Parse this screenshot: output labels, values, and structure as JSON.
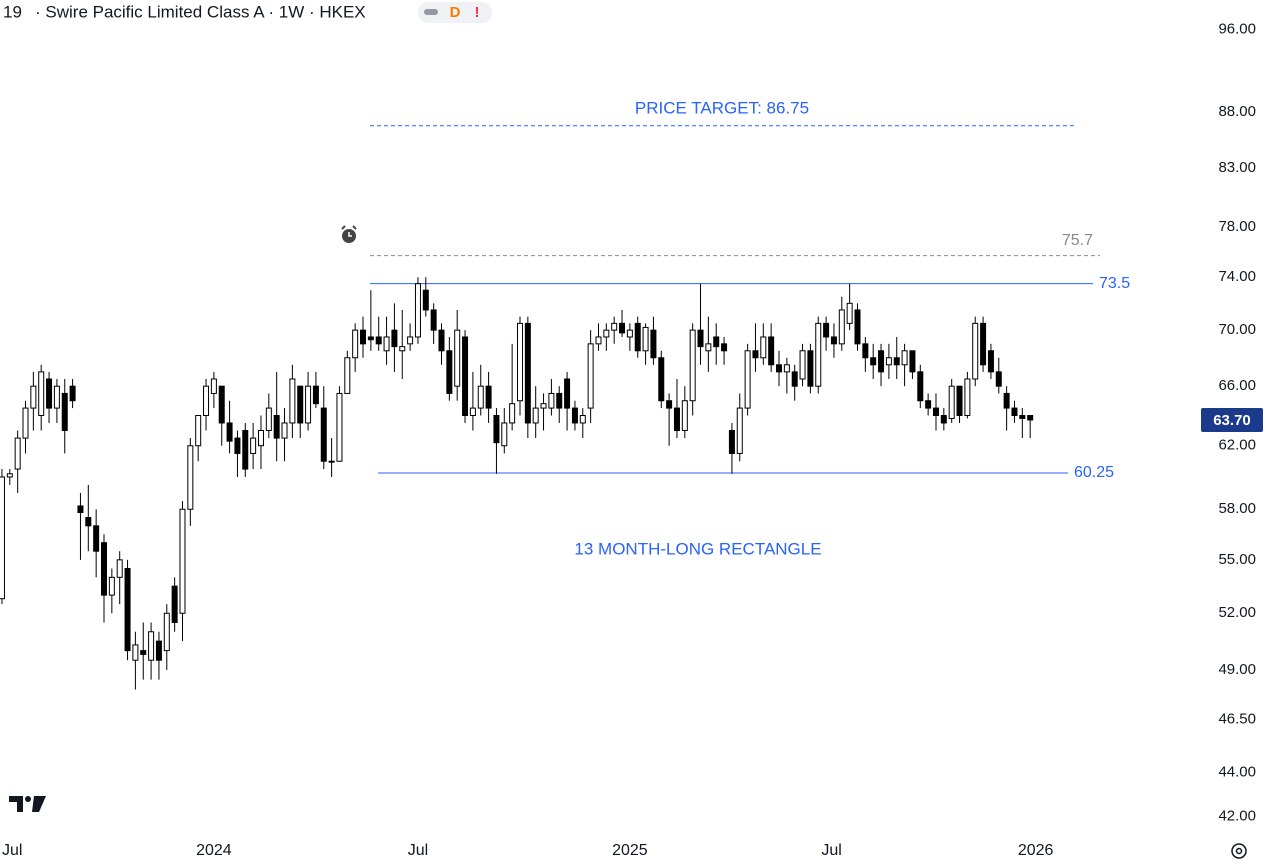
{
  "header": {
    "symbol": "19",
    "title": "· Swire Pacific Limited Class A · 1W · HKEX",
    "badges": [
      "D",
      "!"
    ]
  },
  "chart_data": {
    "type": "candlestick",
    "log_scale": true,
    "up_color": "#ffffff",
    "down_color": "#000000",
    "x": [
      0,
      1,
      2,
      3,
      4,
      5,
      6,
      7,
      8,
      9,
      10,
      11,
      12,
      13,
      14,
      15,
      16,
      17,
      18,
      19,
      20,
      21,
      22,
      23,
      24,
      25,
      26,
      27,
      28,
      29,
      30,
      31,
      32,
      33,
      34,
      35,
      36,
      37,
      38,
      39,
      40,
      41,
      42,
      43,
      44,
      45,
      46,
      47,
      48,
      49,
      50,
      51,
      52,
      53,
      54,
      55,
      56,
      57,
      58,
      59,
      60,
      61,
      62,
      63,
      64,
      65,
      66,
      67,
      68,
      69,
      70,
      71,
      72,
      73,
      74,
      75,
      76,
      77,
      78,
      79,
      80,
      81,
      82,
      83,
      84,
      85,
      86,
      87,
      88,
      89,
      90,
      91,
      92,
      93,
      94,
      95,
      96,
      97,
      98,
      99,
      100,
      101,
      102,
      103,
      104,
      105,
      106,
      107,
      108,
      109,
      110,
      111,
      112,
      113,
      114,
      115,
      116,
      117,
      118,
      119,
      120,
      121,
      122,
      123,
      124,
      125,
      126,
      127,
      128,
      129,
      130,
      131
    ],
    "open": [
      52.8,
      60,
      60.5,
      62.5,
      64.5,
      64,
      66.5,
      64.5,
      65.5,
      66,
      58.2,
      57.5,
      57,
      56,
      53,
      54,
      54.5,
      49.5,
      50,
      49.5,
      50.5,
      50,
      53.5,
      52,
      58,
      62,
      64,
      65.5,
      66,
      63.5,
      62.5,
      63,
      61.5,
      62,
      63,
      64,
      62.5,
      63.5,
      66,
      63.5,
      66,
      64.5,
      61,
      61,
      65.5,
      68,
      70,
      69.5,
      69.5,
      68.5,
      70,
      68.5,
      69,
      69.5,
      73,
      71.5,
      70,
      68.5,
      66,
      69.5,
      64,
      64.5,
      66,
      64,
      62,
      63.5,
      65,
      70.5,
      63.5,
      64.5,
      64.5,
      65.5,
      66.5,
      64.5,
      63.5,
      64.5,
      69,
      69.5,
      70,
      70.5,
      69.5,
      70.5,
      68.5,
      70,
      68,
      65,
      64.5,
      63,
      65,
      70,
      68.5,
      69.5,
      69,
      63,
      61.5,
      64.5,
      68.5,
      68,
      69.5,
      67.5,
      67,
      67,
      66.5,
      68.5,
      66,
      70.5,
      69.5,
      69,
      70.5,
      71.5,
      69,
      68,
      68.5,
      67.5,
      68,
      67.5,
      68.5,
      67,
      65,
      64.5,
      64,
      63.8,
      66,
      64,
      66.5,
      70.5,
      68.5,
      67,
      65.5,
      64.5,
      64,
      64
    ],
    "high": [
      60.5,
      60.5,
      63,
      65,
      67,
      67.5,
      67,
      66.5,
      66.5,
      66.5,
      59,
      59.5,
      58,
      56.5,
      54.5,
      55.5,
      55,
      51,
      51.5,
      51.5,
      51,
      52.5,
      54,
      58.5,
      62.5,
      64,
      66.5,
      67,
      66,
      65,
      63,
      63.5,
      63.5,
      64,
      65.5,
      67,
      64.5,
      67.5,
      66,
      67,
      67,
      66,
      62.5,
      66,
      68.5,
      70.5,
      71,
      73,
      71,
      71,
      72,
      71.5,
      70.5,
      74,
      74,
      72,
      70.5,
      69.5,
      71.5,
      70,
      67,
      67.5,
      67,
      64.5,
      64.5,
      69,
      71,
      71,
      66,
      65.5,
      66.5,
      66,
      67,
      65,
      64.5,
      70,
      70.5,
      70.5,
      71,
      71.5,
      70.5,
      71,
      70.5,
      71,
      68.5,
      65.5,
      66.5,
      66,
      70.5,
      73.5,
      71,
      70.5,
      69.5,
      63.5,
      65.5,
      69,
      70.5,
      70.5,
      70.5,
      68.5,
      68,
      67.5,
      69,
      69,
      71,
      71,
      70.5,
      72.5,
      73.5,
      72,
      69.5,
      69,
      69,
      69,
      69.5,
      69,
      68.5,
      67.5,
      65.5,
      65.5,
      64.5,
      66.5,
      66,
      67,
      71,
      71,
      69,
      68,
      66,
      65,
      64.5,
      64
    ],
    "low": [
      52.5,
      59.5,
      59,
      61.5,
      63,
      63,
      63.5,
      63.5,
      61.5,
      64.5,
      55,
      55.5,
      54,
      51.5,
      52,
      52.5,
      49.5,
      48,
      48.5,
      48.5,
      48.5,
      49,
      51,
      50.5,
      57,
      61,
      63,
      64.5,
      62,
      61.5,
      60,
      60,
      60.5,
      60.5,
      62.5,
      61,
      61,
      62.5,
      62.5,
      63,
      64.5,
      60.5,
      60,
      61,
      65.5,
      67,
      68,
      68.5,
      68.5,
      67.5,
      67,
      66.5,
      68.5,
      69,
      71,
      69,
      67.5,
      65,
      65,
      63.5,
      63,
      64,
      63.5,
      60.2,
      61.5,
      63,
      64,
      62.5,
      62.5,
      63,
      64,
      63.5,
      63,
      63,
      62.5,
      63.5,
      68.5,
      68.5,
      69,
      69.5,
      68.5,
      68,
      67.5,
      67.5,
      64.5,
      62,
      62.5,
      62.5,
      64,
      67.5,
      67,
      67.5,
      67.5,
      60.2,
      61,
      64,
      67,
      67.5,
      67,
      66,
      65.5,
      65,
      66,
      65.5,
      65.5,
      68.5,
      68,
      68.5,
      70,
      68.5,
      67,
      66.5,
      66,
      66.5,
      66.5,
      66,
      66.5,
      64.5,
      64,
      63,
      63,
      63.5,
      63.5,
      63.8,
      66,
      67,
      66.5,
      65.5,
      63,
      63.5,
      62.5,
      62.5
    ],
    "close": [
      60,
      60.2,
      62.5,
      64.5,
      66,
      67,
      64.5,
      66,
      63,
      65,
      57.8,
      57,
      55.5,
      53,
      54,
      55,
      50,
      50.3,
      49.8,
      51,
      49.5,
      52,
      51.5,
      58,
      62,
      64,
      66,
      66.5,
      63.5,
      62.3,
      61.5,
      60.5,
      62.5,
      63,
      64.5,
      62.5,
      63.5,
      66.5,
      63.5,
      66,
      64.8,
      61,
      61,
      65.5,
      68,
      70,
      69,
      69.3,
      69,
      69.5,
      68.8,
      68.8,
      69.5,
      73.5,
      71.5,
      70,
      68.5,
      65.5,
      70,
      64,
      64.5,
      66,
      64.5,
      62.2,
      63.5,
      64.8,
      70.5,
      63.5,
      64.5,
      64.8,
      65.5,
      64.5,
      64.5,
      63.5,
      64,
      69,
      69.5,
      70,
      70.5,
      69.8,
      70,
      68.5,
      70.2,
      68,
      65,
      64.5,
      63,
      65,
      70,
      68.8,
      69,
      68.8,
      68.5,
      61.5,
      64.5,
      68.5,
      68,
      69.5,
      67.5,
      67,
      67.5,
      66,
      68.5,
      66,
      70.5,
      69.5,
      69,
      71.5,
      72,
      69,
      68,
      67.5,
      67,
      68,
      67.5,
      68.5,
      67,
      65,
      64.5,
      64,
      63.5,
      66,
      64,
      66.5,
      70.5,
      67.5,
      67,
      66,
      64.5,
      64,
      63.8,
      63.7
    ],
    "xlim": [
      -0.25,
      152
    ],
    "xticks": [
      {
        "value": 1.3,
        "label": "Jul"
      },
      {
        "value": 27,
        "label": "2024"
      },
      {
        "value": 53,
        "label": "Jul"
      },
      {
        "value": 80,
        "label": "2025"
      },
      {
        "value": 105.7,
        "label": "Jul"
      },
      {
        "value": 131.7,
        "label": "2026"
      }
    ],
    "ylim": [
      41.2,
      99.0
    ],
    "yticks": [
      {
        "value": 96,
        "label": "96.00"
      },
      {
        "value": 88,
        "label": "88.00"
      },
      {
        "value": 83,
        "label": "83.00"
      },
      {
        "value": 78,
        "label": "78.00"
      },
      {
        "value": 74,
        "label": "74.00"
      },
      {
        "value": 70,
        "label": "70.00"
      },
      {
        "value": 66,
        "label": "66.00"
      },
      {
        "value": 62,
        "label": "62.00"
      },
      {
        "value": 58,
        "label": "58.00"
      },
      {
        "value": 55,
        "label": "55.00"
      },
      {
        "value": 52,
        "label": "52.00"
      },
      {
        "value": 49,
        "label": "49.00"
      },
      {
        "value": 46.5,
        "label": "46.50"
      },
      {
        "value": 44,
        "label": "44.00"
      },
      {
        "value": 42,
        "label": "42.00"
      }
    ],
    "last_price": {
      "value": 63.7,
      "label": "63.70",
      "color": "#1c3a8c"
    },
    "target": {
      "value": 86.75,
      "label": "PRICE TARGET: 86.75",
      "color": "#2962ff"
    },
    "levels": [
      {
        "value": 75.7,
        "color": "#8a8a8a",
        "dashed": true
      },
      {
        "value": 73.5,
        "color": "#2962ff",
        "dashed": false
      },
      {
        "value": 60.25,
        "color": "#2962ff",
        "dashed": false
      }
    ],
    "annotation": "13 MONTH-LONG RECTANGLE"
  }
}
